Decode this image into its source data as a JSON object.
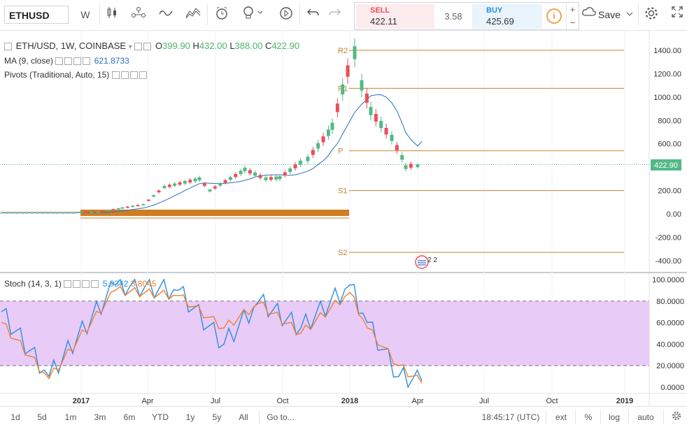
{
  "toolbar": {
    "symbol": "ETHUSD",
    "interval": "W",
    "save_label": "Save",
    "icons": [
      "candles-icon",
      "compare-icon",
      "indicator-icon",
      "templates-icon",
      "alert-icon",
      "idea-icon",
      "replay-icon",
      "undo-icon",
      "redo-icon",
      "cloud-icon",
      "settings-icon",
      "fullscreen-icon"
    ]
  },
  "trade": {
    "sell_label": "SELL",
    "sell_price": "422.11",
    "spread": "3.58",
    "buy_label": "BUY",
    "buy_price": "425.69",
    "info": "i",
    "plus": "+",
    "minus": "−"
  },
  "legend": {
    "main_title": "ETH/USD, 1W, COINBASE",
    "open_label": "O",
    "open": "399.90",
    "high_label": "H",
    "high": "432.00",
    "low_label": "L",
    "low": "388.00",
    "close_label": "C",
    "close": "422.90",
    "ma_title": "MA (9, close)",
    "ma_value": "621.8733",
    "pivots_title": "Pivots (Traditional, Auto, 15)",
    "stoch_title": "Stoch (14, 3, 1)",
    "stoch_k": "5.9342",
    "stoch_d": "3.8045"
  },
  "price_axis": {
    "ticks": [
      "1400.00",
      "1200.00",
      "1000.00",
      "800.00",
      "600.00",
      "400.00",
      "200.00",
      "0.00",
      "-200.00",
      "-400.00"
    ],
    "last_price": "422.90"
  },
  "stoch_axis": {
    "ticks": [
      "100.0000",
      "80.0000",
      "60.0000",
      "40.0000",
      "20.0000",
      "0.0000"
    ]
  },
  "time_axis": {
    "ticks": [
      "2017",
      "Apr",
      "Jul",
      "Oct",
      "2018",
      "Apr",
      "Jul",
      "Oct",
      "2019"
    ]
  },
  "pivots": {
    "labels": [
      "R2",
      "R1",
      "P",
      "S1",
      "S2"
    ],
    "values": [
      1400,
      1075,
      540,
      200,
      -330
    ]
  },
  "events_badge": "2 2",
  "bottom": {
    "ranges": [
      "1d",
      "5d",
      "1m",
      "3m",
      "6m",
      "YTD",
      "1y",
      "5y",
      "All"
    ],
    "goto": "Go to...",
    "clock": "18:45:17 (UTC)",
    "ext": "ext",
    "pct": "%",
    "log": "log",
    "auto": "auto"
  },
  "colors": {
    "up": "#53b987",
    "down": "#eb4d5c",
    "ma": "#2a6fbd",
    "pivot": "#c8832e",
    "stoch_k": "#2a8fe0",
    "stoch_d": "#f08030",
    "stoch_band": "#e9cbf7"
  },
  "chart_data": [
    {
      "type": "candlestick",
      "title": "ETH/USD, 1W, COINBASE",
      "ylim": [
        -450,
        1480
      ],
      "candles": [
        {
          "x": "2017-01",
          "o": 8,
          "h": 11,
          "l": 8,
          "c": 10
        },
        {
          "x": "2017-02",
          "o": 10,
          "h": 15,
          "l": 10,
          "c": 13
        },
        {
          "x": "2017-03",
          "o": 13,
          "h": 55,
          "l": 13,
          "c": 50
        },
        {
          "x": "2017-04",
          "o": 50,
          "h": 80,
          "l": 48,
          "c": 78
        },
        {
          "x": "2017-05",
          "o": 80,
          "h": 240,
          "l": 80,
          "c": 230
        },
        {
          "x": "2017-06",
          "o": 230,
          "h": 420,
          "l": 220,
          "c": 300
        },
        {
          "x": "2017-07",
          "o": 300,
          "h": 330,
          "l": 150,
          "c": 200
        },
        {
          "x": "2017-08",
          "o": 200,
          "h": 390,
          "l": 190,
          "c": 380
        },
        {
          "x": "2017-09",
          "o": 380,
          "h": 400,
          "l": 200,
          "c": 300
        },
        {
          "x": "2017-10",
          "o": 300,
          "h": 340,
          "l": 280,
          "c": 310
        },
        {
          "x": "2017-11",
          "o": 310,
          "h": 480,
          "l": 300,
          "c": 470
        },
        {
          "x": "2017-12",
          "o": 470,
          "h": 880,
          "l": 430,
          "c": 750
        },
        {
          "x": "2018-01",
          "o": 750,
          "h": 1420,
          "l": 700,
          "c": 1380
        },
        {
          "x": "2018-01b",
          "o": 1380,
          "h": 1380,
          "l": 1020,
          "c": 1100
        },
        {
          "x": "2018-02",
          "o": 1100,
          "h": 1220,
          "l": 780,
          "c": 880
        },
        {
          "x": "2018-03",
          "o": 880,
          "h": 920,
          "l": 600,
          "c": 650
        },
        {
          "x": "2018-03b",
          "o": 650,
          "h": 680,
          "l": 380,
          "c": 400
        },
        {
          "x": "2018-04",
          "o": 399.9,
          "h": 432,
          "l": 388,
          "c": 422.9
        }
      ],
      "ma9": {
        "name": "MA (9, close)",
        "last": 621.8733
      }
    },
    {
      "type": "line",
      "title": "Stoch (14, 3, 1)",
      "ylim": [
        0,
        100
      ],
      "bands": [
        20,
        80
      ],
      "series": [
        {
          "name": "%K",
          "x": [
            "2016-12",
            "2017-02",
            "2017-04",
            "2017-06",
            "2017-07",
            "2017-09",
            "2017-11",
            "2018-01",
            "2018-02",
            "2018-03",
            "2018-04"
          ],
          "values": [
            70,
            10,
            95,
            90,
            40,
            80,
            55,
            95,
            60,
            10,
            5.9342
          ]
        },
        {
          "name": "%D",
          "x": [
            "2016-12",
            "2017-02",
            "2017-04",
            "2017-06",
            "2017-07",
            "2017-09",
            "2017-11",
            "2018-01",
            "2018-02",
            "2018-03",
            "2018-04"
          ],
          "values": [
            60,
            8,
            90,
            85,
            55,
            78,
            50,
            88,
            55,
            20,
            3.8045
          ]
        }
      ]
    }
  ]
}
